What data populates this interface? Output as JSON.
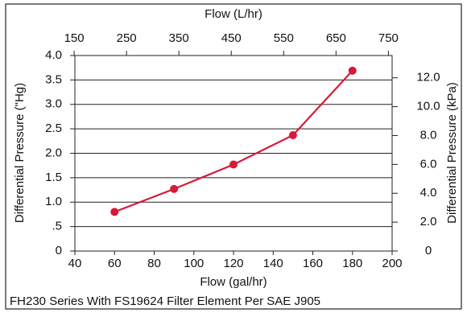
{
  "chart_data": {
    "type": "line",
    "footer": "FH230 Series With FS19624 Filter Element Per SAE J905",
    "xlabel": "Flow (gal/hr)",
    "x2label": "Flow (L/hr)",
    "ylabel": "Differential Pressure (\"Hg)",
    "y2label": "Differential Pressure (kPa)",
    "x": [
      60,
      90,
      120,
      150,
      180
    ],
    "series": [
      {
        "name": "FH230",
        "color": "#d7193a",
        "values": [
          0.8,
          1.27,
          1.77,
          2.37,
          3.69
        ]
      }
    ],
    "xlim": [
      40,
      200
    ],
    "xticks": [
      40,
      60,
      80,
      100,
      120,
      140,
      160,
      180,
      200
    ],
    "x2lim": [
      151.4,
      757.1
    ],
    "x2ticks": [
      150,
      250,
      350,
      450,
      550,
      650,
      750
    ],
    "ylim": [
      0,
      4.0
    ],
    "yticks": [
      0,
      {
        "value": 0.5,
        "label": ".5"
      },
      {
        "value": 1,
        "label": "1.0"
      },
      {
        "value": 1.5,
        "label": "1.5"
      },
      {
        "value": 2,
        "label": "2.0"
      },
      {
        "value": 2.5,
        "label": "2.5"
      },
      {
        "value": 3,
        "label": "3.0"
      },
      {
        "value": 3.5,
        "label": "3.5"
      },
      {
        "value": 4,
        "label": "4.0"
      }
    ],
    "y2lim": [
      0,
      13.545
    ],
    "y2ticks": [
      0,
      {
        "value": 2,
        "label": "2.0"
      },
      {
        "value": 4,
        "label": "4.0"
      },
      {
        "value": 6,
        "label": "6.0"
      },
      {
        "value": 8,
        "label": "8.0"
      },
      {
        "value": 12,
        "label": "12.0"
      },
      {
        "value": 10,
        "label": "10.0"
      }
    ],
    "grid": true
  }
}
